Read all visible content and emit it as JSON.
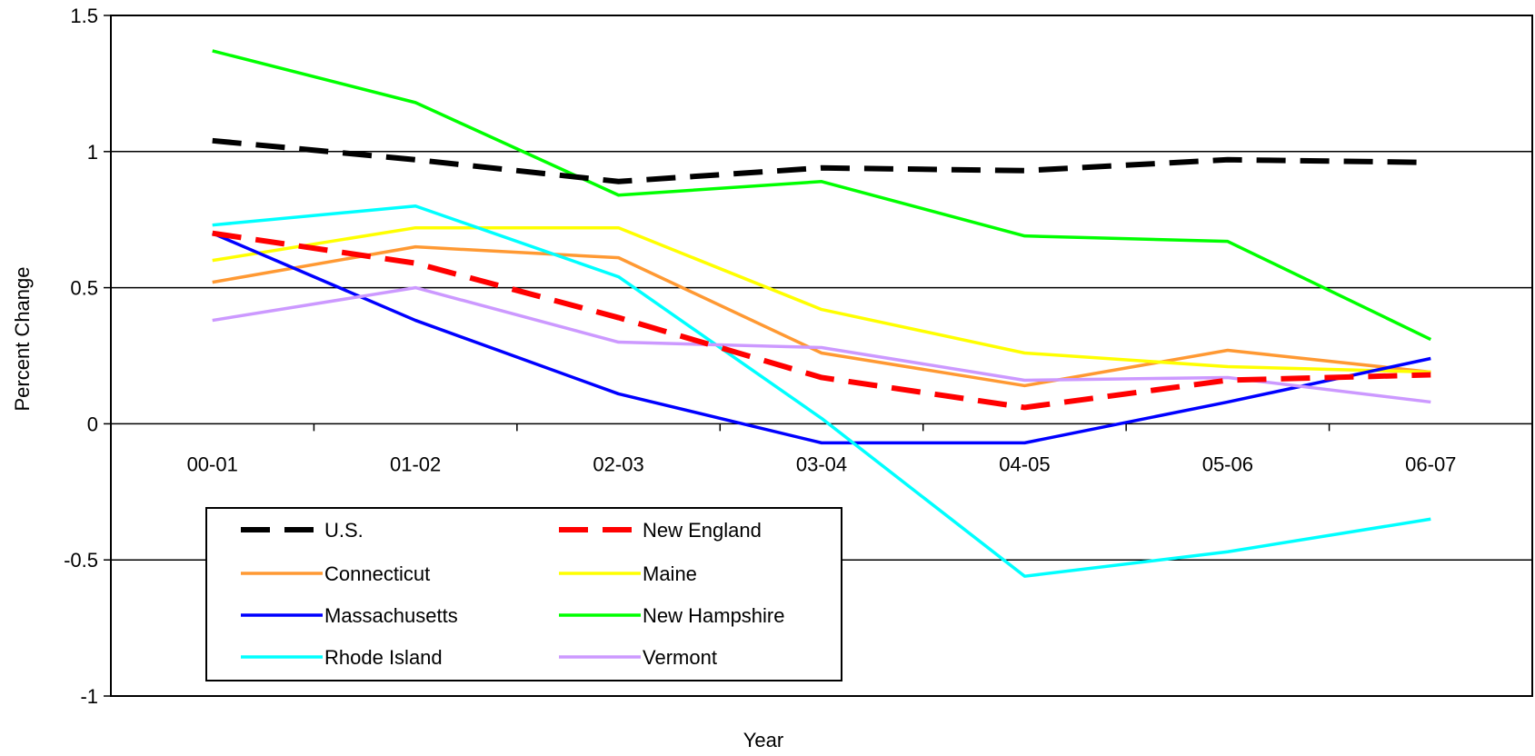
{
  "chart_data": {
    "type": "line",
    "title": "",
    "xlabel": "Year",
    "ylabel": "Percent Change",
    "ylim": [
      -1,
      1.5
    ],
    "yticks": [
      "-1",
      "-0.5",
      "0",
      "0.5",
      "1",
      "1.5"
    ],
    "ytick_values": [
      -1,
      -0.5,
      0,
      0.5,
      1,
      1.5
    ],
    "grid": true,
    "legend_position": "lower-left",
    "categories": [
      "00-01",
      "01-02",
      "02-03",
      "03-04",
      "04-05",
      "05-06",
      "06-07"
    ],
    "series": [
      {
        "name": "U.S.",
        "color": "#000000",
        "dashed": true,
        "values": [
          1.04,
          0.97,
          0.89,
          0.94,
          0.93,
          0.97,
          0.96
        ]
      },
      {
        "name": "New England",
        "color": "#ff0000",
        "dashed": true,
        "values": [
          0.7,
          0.59,
          0.39,
          0.17,
          0.06,
          0.16,
          0.18
        ]
      },
      {
        "name": "Connecticut",
        "color": "#ff9933",
        "dashed": false,
        "values": [
          0.52,
          0.65,
          0.61,
          0.26,
          0.14,
          0.27,
          0.19
        ]
      },
      {
        "name": "Maine",
        "color": "#ffff00",
        "dashed": false,
        "values": [
          0.6,
          0.72,
          0.72,
          0.42,
          0.26,
          0.21,
          0.19
        ]
      },
      {
        "name": "Massachusetts",
        "color": "#0000ff",
        "dashed": false,
        "values": [
          0.7,
          0.38,
          0.11,
          -0.07,
          -0.07,
          0.08,
          0.24
        ]
      },
      {
        "name": "New Hampshire",
        "color": "#00ff00",
        "dashed": false,
        "values": [
          1.37,
          1.18,
          0.84,
          0.89,
          0.69,
          0.67,
          0.31
        ]
      },
      {
        "name": "Rhode Island",
        "color": "#00ffff",
        "dashed": false,
        "values": [
          0.73,
          0.8,
          0.54,
          0.02,
          -0.56,
          -0.47,
          -0.35
        ]
      },
      {
        "name": "Vermont",
        "color": "#cc99ff",
        "dashed": false,
        "values": [
          0.38,
          0.5,
          0.3,
          0.28,
          0.16,
          0.17,
          0.08
        ]
      }
    ]
  }
}
